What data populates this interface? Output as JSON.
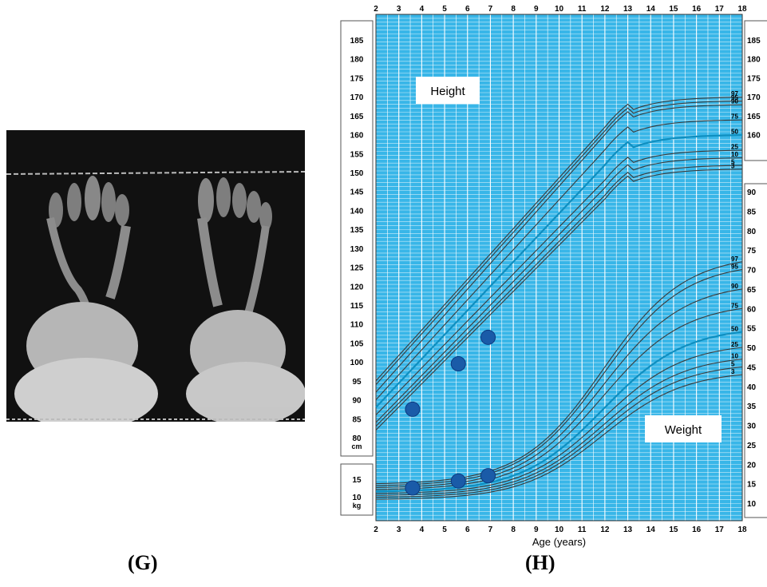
{
  "panels": {
    "left_label": "(G)",
    "right_label": "(H)"
  },
  "xray": {
    "description_icon": "bilateral-foot-radiograph"
  },
  "chart_data": {
    "type": "line",
    "xlabel": "Age (years)",
    "x_ticks": [
      2,
      3,
      4,
      5,
      6,
      7,
      8,
      9,
      10,
      11,
      12,
      13,
      14,
      15,
      16,
      17,
      18
    ],
    "grid": true,
    "colors": {
      "background": "#38b6e8",
      "grid": "#ffffff",
      "curve": "#3a3a3a",
      "median": "#0f8fc0",
      "point": "#1a5ba8"
    },
    "height_panel": {
      "label": "Height",
      "unit": "cm",
      "y_ticks": [
        80,
        85,
        90,
        95,
        100,
        105,
        110,
        115,
        120,
        125,
        130,
        135,
        140,
        145,
        150,
        155,
        160,
        165,
        170,
        175,
        180,
        185
      ],
      "right_ticks": [
        "185",
        "180",
        "175",
        "170",
        "165",
        "160"
      ],
      "percentiles": [
        "97",
        "95",
        "90",
        "75",
        "50",
        "25",
        "10",
        "5",
        "3"
      ],
      "median_percentile": "50",
      "series_end": [
        170,
        169,
        168,
        164,
        160,
        156,
        154,
        152,
        151
      ],
      "patient_points": [
        [
          3.6,
          87.5
        ],
        [
          5.6,
          99.5
        ],
        [
          6.9,
          106.5
        ]
      ]
    },
    "weight_panel": {
      "label": "Weight",
      "unit": "kg",
      "y_ticks": [
        10,
        15
      ],
      "right_ticks": [
        "90",
        "85",
        "80",
        "75",
        "70",
        "65",
        "60",
        "55",
        "50",
        "45",
        "40",
        "35",
        "30",
        "25",
        "20",
        "15",
        "10"
      ],
      "percentiles": [
        "97",
        "95",
        "90",
        "75",
        "50",
        "25",
        "10",
        "5",
        "3"
      ],
      "median_percentile": "50",
      "series_end": [
        72,
        70,
        65,
        60,
        54,
        50,
        47,
        45,
        43
      ],
      "patient_points": [
        [
          3.6,
          12.5
        ],
        [
          5.6,
          14.5
        ],
        [
          6.9,
          16
        ]
      ]
    }
  }
}
